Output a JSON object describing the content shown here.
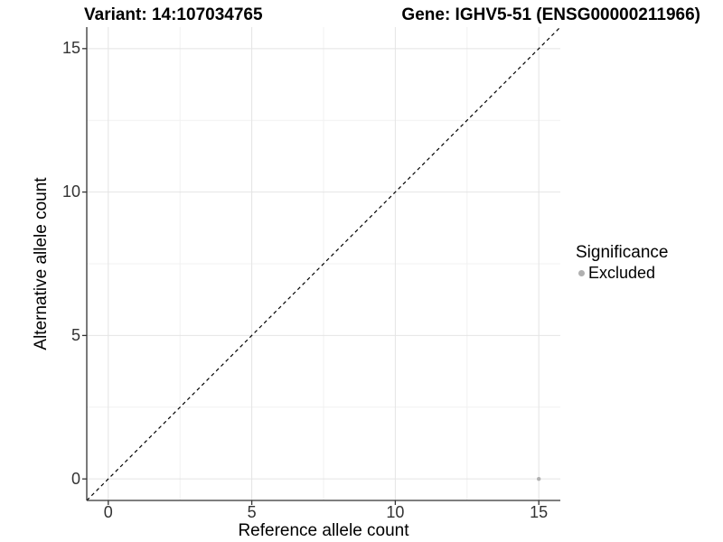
{
  "chart_data": {
    "type": "scatter",
    "title_left": "Variant: 14:107034765",
    "title_right": "Gene: IGHV5-51 (ENSG00000211966)",
    "xlabel": "Reference allele count",
    "ylabel": "Alternative allele count",
    "xlim": [
      -0.75,
      15.75
    ],
    "ylim": [
      -0.75,
      15.75
    ],
    "xticks": [
      0,
      5,
      10,
      15
    ],
    "yticks": [
      0,
      5,
      10,
      15
    ],
    "xminor": [
      2.5,
      7.5,
      12.5
    ],
    "yminor": [
      2.5,
      7.5,
      12.5
    ],
    "grid": "on",
    "reference_line": {
      "kind": "identity y=x",
      "style": "dashed",
      "color": "#000000"
    },
    "series": [
      {
        "name": "Excluded",
        "color": "#b0b0b0",
        "points": [
          {
            "x": 15,
            "y": 0
          }
        ]
      }
    ],
    "legend": {
      "title": "Significance",
      "position": "right",
      "items": [
        {
          "label": "Excluded",
          "color": "#b0b0b0"
        }
      ]
    },
    "colors": {
      "grid_major": "#e4e4e4",
      "grid_minor": "#f1f1f1",
      "axis_line": "#333333",
      "tick_mark": "#333333",
      "tick_text": "#333333",
      "title_text": "#000000"
    }
  }
}
